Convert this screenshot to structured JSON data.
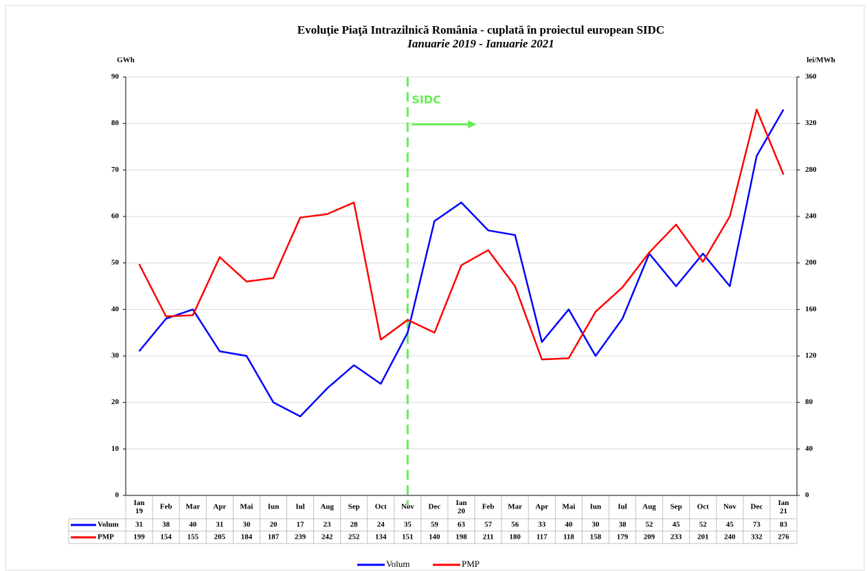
{
  "chart_data": {
    "type": "line",
    "title": "Evoluţie Piaţă Intrazilnică România - cuplată în proiectul  european SIDC",
    "subtitle": "Ianuarie 2019 - Ianuarie 2021",
    "y_label": "GWh",
    "y2_label": "lei/MWh",
    "categories": [
      "Ian 19",
      "Feb",
      "Mar",
      "Apr",
      "Mai",
      "Iun",
      "Iul",
      "Aug",
      "Sep",
      "Oct",
      "Nov",
      "Dec",
      "Ian 20",
      "Feb",
      "Mar",
      "Apr",
      "Mai",
      "Iun",
      "Iul",
      "Aug",
      "Sep",
      "Oct",
      "Nov",
      "Dec",
      "Ian 21"
    ],
    "series": [
      {
        "name": "Volum",
        "color": "#0000ff",
        "values": [
          31,
          38,
          40,
          31,
          30,
          20,
          17,
          23,
          28,
          24,
          35,
          59,
          63,
          57,
          56,
          33,
          40,
          30,
          38,
          52,
          45,
          52,
          45,
          73,
          83
        ]
      },
      {
        "name": "PMP",
        "color": "#ff0000",
        "axis": "y2",
        "values": [
          199,
          154,
          155,
          205,
          184,
          187,
          239,
          242,
          252,
          134,
          151,
          140,
          198,
          211,
          180,
          117,
          118,
          158,
          179,
          209,
          233,
          201,
          240,
          332,
          276
        ]
      }
    ],
    "ylim": [
      0,
      90
    ],
    "yticks": [
      0,
      10,
      20,
      30,
      40,
      50,
      60,
      70,
      80,
      90
    ],
    "y2lim": [
      0,
      360
    ],
    "y2ticks": [
      0,
      40,
      80,
      120,
      160,
      200,
      240,
      280,
      320,
      360
    ],
    "grid": true,
    "annotation": {
      "text": "SIDC",
      "x": "Nov",
      "color": "#66ee55"
    }
  }
}
